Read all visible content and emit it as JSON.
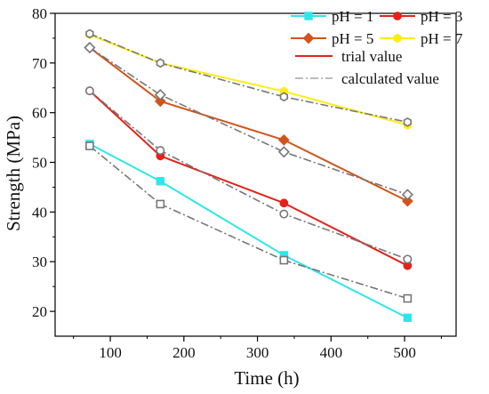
{
  "chart_data": {
    "type": "line",
    "xlabel": "Time (h)",
    "ylabel": "Strength (MPa)",
    "xlim": [
      25,
      570
    ],
    "ylim": [
      15,
      80
    ],
    "xticks": [
      100,
      200,
      300,
      400,
      500
    ],
    "yticks": [
      20,
      30,
      40,
      50,
      60,
      70,
      80
    ],
    "x": [
      72,
      168,
      336,
      504
    ],
    "legend_position": "top-right",
    "series": [
      {
        "name": "pH = 1",
        "kind": "trial",
        "group": "pH1",
        "color": "#2ee6ea",
        "marker": "square",
        "filled": true,
        "values": [
          53.7,
          46.2,
          31.3,
          18.7
        ]
      },
      {
        "name": "pH = 3",
        "kind": "trial",
        "group": "pH3",
        "color": "#e2231a",
        "marker": "circle",
        "filled": true,
        "values": [
          64.4,
          51.3,
          41.8,
          29.2
        ]
      },
      {
        "name": "pH = 5",
        "kind": "trial",
        "group": "pH5",
        "color": "#d2541b",
        "marker": "diamond",
        "filled": true,
        "values": [
          73.1,
          62.3,
          54.5,
          42.2
        ]
      },
      {
        "name": "pH = 7",
        "kind": "trial",
        "group": "pH7",
        "color": "#ffec15",
        "marker": "hexagon",
        "filled": true,
        "values": [
          75.7,
          70.0,
          64.3,
          57.5
        ]
      },
      {
        "name": "",
        "kind": "calculated",
        "group": "pH1",
        "color": "#777777",
        "marker": "square",
        "filled": false,
        "values": [
          53.3,
          41.6,
          30.3,
          22.6
        ]
      },
      {
        "name": "",
        "kind": "calculated",
        "group": "pH3",
        "color": "#777777",
        "marker": "circle",
        "filled": false,
        "values": [
          64.4,
          52.4,
          39.6,
          30.5
        ]
      },
      {
        "name": "",
        "kind": "calculated",
        "group": "pH5",
        "color": "#777777",
        "marker": "diamond",
        "filled": false,
        "values": [
          73.1,
          63.6,
          52.1,
          43.5
        ]
      },
      {
        "name": "",
        "kind": "calculated",
        "group": "pH7",
        "color": "#777777",
        "marker": "hexagon",
        "filled": false,
        "values": [
          75.9,
          70.0,
          63.2,
          58.1
        ]
      }
    ],
    "legend": {
      "entries": [
        {
          "label": "pH = 1",
          "color": "#2ee6ea",
          "marker": "square"
        },
        {
          "label": "pH = 3",
          "color": "#e2231a",
          "marker": "circle"
        },
        {
          "label": "pH = 5",
          "color": "#d2541b",
          "marker": "diamond"
        },
        {
          "label": "pH = 7",
          "color": "#ffec15",
          "marker": "hexagon"
        }
      ],
      "style_entries": [
        {
          "label": "trial value",
          "color": "#e2231a",
          "style": "solid"
        },
        {
          "label": "calculated value",
          "color": "#bbbbbb",
          "style": "dashdot"
        }
      ]
    }
  }
}
